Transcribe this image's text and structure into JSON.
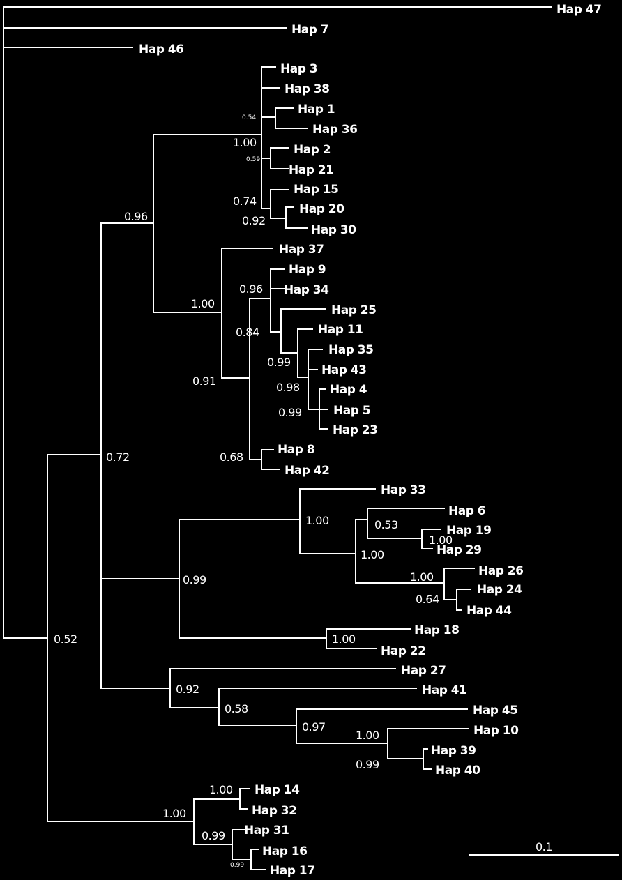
{
  "colors": {
    "background": "#000000",
    "lines": "#ffffff",
    "text": "#ffffff"
  },
  "tips": [
    {
      "id": "h47",
      "label": "Hap 47"
    },
    {
      "id": "h7",
      "label": "Hap 7"
    },
    {
      "id": "h46",
      "label": "Hap 46"
    },
    {
      "id": "h3",
      "label": "Hap 3"
    },
    {
      "id": "h38",
      "label": "Hap 38"
    },
    {
      "id": "h1",
      "label": "Hap 1"
    },
    {
      "id": "h36",
      "label": "Hap 36"
    },
    {
      "id": "h2",
      "label": "Hap 2"
    },
    {
      "id": "h21",
      "label": "Hap 21"
    },
    {
      "id": "h15",
      "label": "Hap 15"
    },
    {
      "id": "h20",
      "label": "Hap 20"
    },
    {
      "id": "h30",
      "label": "Hap 30"
    },
    {
      "id": "h37",
      "label": "Hap 37"
    },
    {
      "id": "h9",
      "label": "Hap 9"
    },
    {
      "id": "h34",
      "label": "Hap 34"
    },
    {
      "id": "h25",
      "label": "Hap 25"
    },
    {
      "id": "h11",
      "label": "Hap 11"
    },
    {
      "id": "h35",
      "label": "Hap 35"
    },
    {
      "id": "h43",
      "label": "Hap 43"
    },
    {
      "id": "h4",
      "label": "Hap 4"
    },
    {
      "id": "h5",
      "label": "Hap 5"
    },
    {
      "id": "h23",
      "label": "Hap 23"
    },
    {
      "id": "h8",
      "label": "Hap 8"
    },
    {
      "id": "h42",
      "label": "Hap 42"
    },
    {
      "id": "h33",
      "label": "Hap 33"
    },
    {
      "id": "h6",
      "label": "Hap 6"
    },
    {
      "id": "h19",
      "label": "Hap 19"
    },
    {
      "id": "h29",
      "label": "Hap 29"
    },
    {
      "id": "h26",
      "label": "Hap 26"
    },
    {
      "id": "h24",
      "label": "Hap 24"
    },
    {
      "id": "h44",
      "label": "Hap 44"
    },
    {
      "id": "h18",
      "label": "Hap 18"
    },
    {
      "id": "h22",
      "label": "Hap 22"
    },
    {
      "id": "h27",
      "label": "Hap 27"
    },
    {
      "id": "h41",
      "label": "Hap 41"
    },
    {
      "id": "h45",
      "label": "Hap 45"
    },
    {
      "id": "h10",
      "label": "Hap 10"
    },
    {
      "id": "h39",
      "label": "Hap 39"
    },
    {
      "id": "h40",
      "label": "Hap 40"
    },
    {
      "id": "h14",
      "label": "Hap 14"
    },
    {
      "id": "h32",
      "label": "Hap 32"
    },
    {
      "id": "h31",
      "label": "Hap 31"
    },
    {
      "id": "h16",
      "label": "Hap 16"
    },
    {
      "id": "h17",
      "label": "Hap 17"
    }
  ],
  "supports": [
    {
      "id": "s_h1_36",
      "value": "0.54"
    },
    {
      "id": "s_clade3",
      "value": "1.00"
    },
    {
      "id": "s_h2_21",
      "value": "0.59"
    },
    {
      "id": "s_h15",
      "value": "0.74"
    },
    {
      "id": "s_h20_30",
      "value": "0.92"
    },
    {
      "id": "s_upper",
      "value": "0.96"
    },
    {
      "id": "s_clade37",
      "value": "1.00"
    },
    {
      "id": "s_h9_34",
      "value": "0.96"
    },
    {
      "id": "s_c084",
      "value": "0.84"
    },
    {
      "id": "s_c099a",
      "value": "0.99"
    },
    {
      "id": "s_c098",
      "value": "0.98"
    },
    {
      "id": "s_c099b",
      "value": "0.99"
    },
    {
      "id": "s_c091",
      "value": "0.91"
    },
    {
      "id": "s_h8_42",
      "value": "0.68"
    },
    {
      "id": "s_c072",
      "value": "0.72"
    },
    {
      "id": "s_c33",
      "value": "1.00"
    },
    {
      "id": "s_h6",
      "value": "0.53"
    },
    {
      "id": "s_h19_29",
      "value": "1.00"
    },
    {
      "id": "s_c6",
      "value": "1.00"
    },
    {
      "id": "s_h26",
      "value": "1.00"
    },
    {
      "id": "s_h24_44",
      "value": "0.64"
    },
    {
      "id": "s_c099c",
      "value": "0.99"
    },
    {
      "id": "s_h18_22",
      "value": "1.00"
    },
    {
      "id": "s_c27",
      "value": "0.92"
    },
    {
      "id": "s_c41",
      "value": "0.58"
    },
    {
      "id": "s_c45",
      "value": "0.97"
    },
    {
      "id": "s_h10",
      "value": "1.00"
    },
    {
      "id": "s_h39_40",
      "value": "0.99"
    },
    {
      "id": "s_c052",
      "value": "0.52"
    },
    {
      "id": "s_h14_32",
      "value": "1.00"
    },
    {
      "id": "s_c14",
      "value": "1.00"
    },
    {
      "id": "s_c31",
      "value": "0.99"
    },
    {
      "id": "s_h16_17",
      "value": "0.99"
    }
  ],
  "scale_bar": {
    "label": "0.1"
  }
}
